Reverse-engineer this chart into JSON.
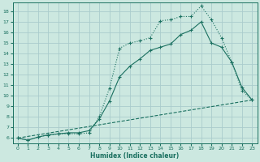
{
  "xlabel": "Humidex (Indice chaleur)",
  "background_color": "#cce8e0",
  "grid_color": "#aacccc",
  "line_color": "#1a7060",
  "xlim": [
    -0.5,
    23.5
  ],
  "ylim": [
    5.5,
    18.8
  ],
  "yticks": [
    6,
    7,
    8,
    9,
    10,
    11,
    12,
    13,
    14,
    15,
    16,
    17,
    18
  ],
  "xticks": [
    0,
    1,
    2,
    3,
    4,
    5,
    6,
    7,
    8,
    9,
    10,
    11,
    12,
    13,
    14,
    15,
    16,
    17,
    18,
    19,
    20,
    21,
    22,
    23
  ],
  "line1_x": [
    0,
    1,
    2,
    3,
    4,
    5,
    6,
    7,
    8,
    9,
    10,
    11,
    12,
    13,
    14,
    15,
    16,
    17,
    18,
    19,
    20,
    21,
    22,
    23
  ],
  "line1_y": [
    6.0,
    5.8,
    6.1,
    6.3,
    6.4,
    6.4,
    6.4,
    6.5,
    8.0,
    10.7,
    14.5,
    15.0,
    15.2,
    15.5,
    17.1,
    17.2,
    17.5,
    17.5,
    18.5,
    17.2,
    15.5,
    13.2,
    10.5,
    9.6
  ],
  "line2_x": [
    0,
    1,
    2,
    3,
    4,
    5,
    6,
    7,
    8,
    9,
    10,
    11,
    12,
    13,
    14,
    15,
    16,
    17,
    18,
    19,
    20,
    21,
    22,
    23
  ],
  "line2_y": [
    6.0,
    5.8,
    6.1,
    6.3,
    6.4,
    6.5,
    6.5,
    6.7,
    7.8,
    9.5,
    11.8,
    12.8,
    13.5,
    14.3,
    14.6,
    14.9,
    15.8,
    16.2,
    17.0,
    15.0,
    14.6,
    13.2,
    10.8,
    9.6
  ],
  "line3_x": [
    0,
    23
  ],
  "line3_y": [
    6.0,
    9.6
  ]
}
